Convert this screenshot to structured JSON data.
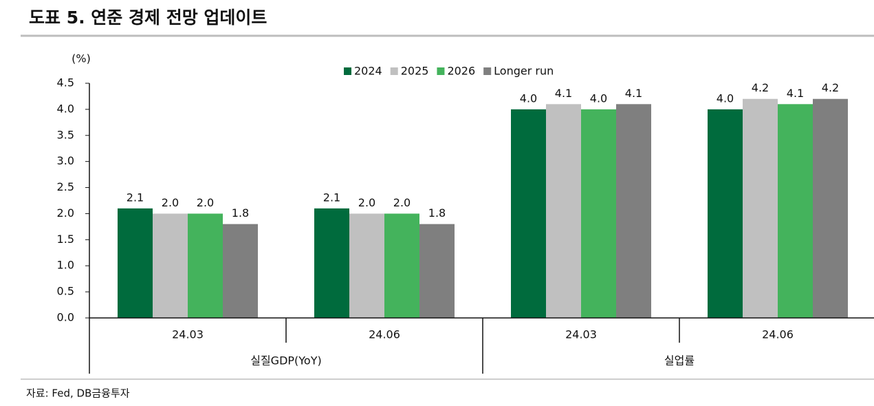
{
  "chart_data": {
    "type": "bar",
    "title": "도표 5. 연준 경제 전망 업데이트",
    "unit": "(%)",
    "source": "자료: Fed, DB금융투자",
    "categories": [
      "24.03",
      "24.06",
      "24.03",
      "24.06"
    ],
    "category_groups": [
      "실질GDP(YoY)",
      "실업률"
    ],
    "series": [
      {
        "name": "2024",
        "color": "#006b3d",
        "values": [
          2.1,
          2.1,
          4.0,
          4.0
        ],
        "value_labels": [
          "2.1",
          "2.1",
          "4.0",
          "4.0"
        ]
      },
      {
        "name": "2025",
        "color": "#c0c0c0",
        "values": [
          2.0,
          2.0,
          4.1,
          4.2
        ],
        "value_labels": [
          "2.0",
          "2.0",
          "4.1",
          "4.2"
        ]
      },
      {
        "name": "2026",
        "color": "#44b35c",
        "values": [
          2.0,
          2.0,
          4.0,
          4.1
        ],
        "value_labels": [
          "2.0",
          "2.0",
          "4.0",
          "4.1"
        ]
      },
      {
        "name": "Longer run",
        "color": "#7f7f7f",
        "values": [
          1.8,
          1.8,
          4.1,
          4.2
        ],
        "value_labels": [
          "1.8",
          "1.8",
          "4.1",
          "4.2"
        ]
      }
    ],
    "ylim": [
      0,
      4.5
    ],
    "yticks": [
      {
        "value": 0,
        "label": "0.0"
      },
      {
        "value": 0.5,
        "label": "0.5"
      },
      {
        "value": 1,
        "label": "1.0"
      },
      {
        "value": 1.5,
        "label": "1.5"
      },
      {
        "value": 2,
        "label": "2.0"
      },
      {
        "value": 2.5,
        "label": "2.5"
      },
      {
        "value": 3,
        "label": "3.0"
      },
      {
        "value": 3.5,
        "label": "3.5"
      },
      {
        "value": 4,
        "label": "4.0"
      },
      {
        "value": 4.5,
        "label": "4.5"
      }
    ],
    "grid": false
  }
}
